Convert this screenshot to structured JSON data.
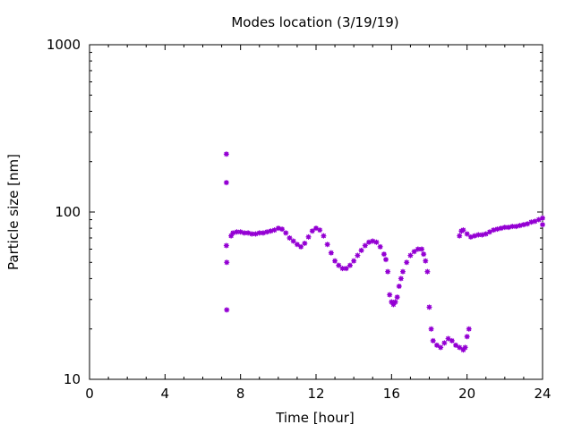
{
  "chart_data": {
    "type": "scatter",
    "title": "Modes location (3/19/19)",
    "xlabel": "Time [hour]",
    "ylabel": "Particle size [nm]",
    "xlim": [
      0,
      24
    ],
    "ylim": [
      10,
      1000
    ],
    "yscale": "log",
    "grid": false,
    "legend": "none",
    "x_ticks": [
      "0",
      "4",
      "8",
      "12",
      "16",
      "20",
      "24"
    ],
    "y_ticks": [
      "10",
      "100",
      "1000"
    ],
    "marker_color": "#9400d3",
    "series": [
      {
        "points": [
          [
            7.25,
            222
          ],
          [
            7.25,
            150
          ],
          [
            7.25,
            63
          ],
          [
            7.27,
            50
          ],
          [
            7.27,
            26
          ],
          [
            7.5,
            72
          ],
          [
            7.6,
            75
          ],
          [
            7.8,
            76
          ],
          [
            8.0,
            76
          ],
          [
            8.2,
            75
          ],
          [
            8.4,
            75
          ],
          [
            8.6,
            74
          ],
          [
            8.8,
            74
          ],
          [
            9.0,
            75
          ],
          [
            9.2,
            75
          ],
          [
            9.4,
            76
          ],
          [
            9.6,
            77
          ],
          [
            9.8,
            78
          ],
          [
            10.0,
            80
          ],
          [
            10.2,
            79
          ],
          [
            10.4,
            75
          ],
          [
            10.6,
            70
          ],
          [
            10.8,
            67
          ],
          [
            11.0,
            64
          ],
          [
            11.2,
            62
          ],
          [
            11.4,
            65
          ],
          [
            11.6,
            71
          ],
          [
            11.8,
            77
          ],
          [
            12.0,
            80
          ],
          [
            12.2,
            78
          ],
          [
            12.4,
            72
          ],
          [
            12.6,
            64
          ],
          [
            12.8,
            57
          ],
          [
            13.0,
            51
          ],
          [
            13.2,
            48
          ],
          [
            13.4,
            46
          ],
          [
            13.6,
            46
          ],
          [
            13.8,
            48
          ],
          [
            14.0,
            51
          ],
          [
            14.2,
            55
          ],
          [
            14.4,
            59
          ],
          [
            14.6,
            63
          ],
          [
            14.8,
            66
          ],
          [
            15.0,
            67
          ],
          [
            15.2,
            66
          ],
          [
            15.4,
            62
          ],
          [
            15.6,
            56
          ],
          [
            15.7,
            52
          ],
          [
            15.8,
            44
          ],
          [
            15.9,
            32
          ],
          [
            16.0,
            29
          ],
          [
            16.1,
            28
          ],
          [
            16.2,
            29
          ],
          [
            16.3,
            31
          ],
          [
            16.4,
            36
          ],
          [
            16.5,
            40
          ],
          [
            16.6,
            44
          ],
          [
            16.8,
            50
          ],
          [
            17.0,
            55
          ],
          [
            17.2,
            58
          ],
          [
            17.4,
            60
          ],
          [
            17.6,
            60
          ],
          [
            17.7,
            56
          ],
          [
            17.8,
            51
          ],
          [
            17.9,
            44
          ],
          [
            18.0,
            27
          ],
          [
            18.1,
            20
          ],
          [
            18.2,
            17
          ],
          [
            18.4,
            16
          ],
          [
            18.6,
            15.5
          ],
          [
            18.8,
            16.5
          ],
          [
            19.0,
            17.5
          ],
          [
            19.2,
            17
          ],
          [
            19.4,
            16
          ],
          [
            19.6,
            15.5
          ],
          [
            19.8,
            15
          ],
          [
            19.9,
            15.5
          ],
          [
            20.0,
            18
          ],
          [
            20.1,
            20
          ],
          [
            19.6,
            72
          ],
          [
            19.7,
            77
          ],
          [
            19.8,
            78
          ],
          [
            20.0,
            74
          ],
          [
            20.2,
            71
          ],
          [
            20.4,
            72
          ],
          [
            20.6,
            73
          ],
          [
            20.8,
            73
          ],
          [
            21.0,
            74
          ],
          [
            21.2,
            76
          ],
          [
            21.4,
            78
          ],
          [
            21.6,
            79
          ],
          [
            21.8,
            80
          ],
          [
            22.0,
            81
          ],
          [
            22.2,
            81
          ],
          [
            22.4,
            82
          ],
          [
            22.6,
            82
          ],
          [
            22.8,
            83
          ],
          [
            23.0,
            84
          ],
          [
            23.2,
            85
          ],
          [
            23.4,
            87
          ],
          [
            23.6,
            88
          ],
          [
            23.8,
            90
          ],
          [
            24.0,
            92
          ],
          [
            24.0,
            84
          ]
        ]
      }
    ]
  }
}
